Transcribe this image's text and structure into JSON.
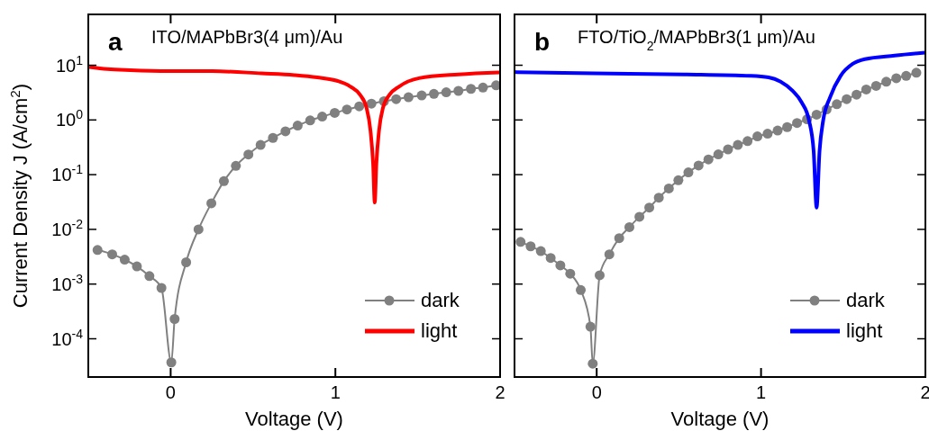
{
  "chart_data": [
    {
      "type": "line",
      "title": "ITO/MAPbBr3(4 μm)/Au",
      "annotations": [
        "a"
      ],
      "xlabel": "Voltage (V)",
      "ylabel": "Current Density J (A/cm$^{2}$)",
      "log": "y",
      "xlim": [
        -0.5,
        2
      ],
      "ylim": [
        2e-05,
        85
      ],
      "xticks": [
        0,
        1,
        2
      ],
      "yticks": [
        {
          "value": 0.0001,
          "label": "10$^{-4}$"
        },
        {
          "value": 0.001,
          "label": "10$^{-3}$"
        },
        {
          "value": 0.01,
          "label": "10$^{-2}$"
        },
        {
          "value": 0.1,
          "label": "10$^{-1}$"
        },
        {
          "value": 1,
          "label": "10$^{0}$"
        },
        {
          "value": 10,
          "label": "10$^{1}$"
        }
      ],
      "legend": "bottom right",
      "series": [
        {
          "name": "dark",
          "color": "#808080",
          "marker": "circle",
          "x": [
            -0.444,
            -0.355,
            -0.279,
            -0.205,
            -0.129,
            -0.056,
            0.004,
            0.024,
            0.094,
            0.169,
            0.247,
            0.323,
            0.396,
            0.472,
            0.546,
            0.621,
            0.697,
            0.771,
            0.847,
            0.92,
            0.996,
            1.07,
            1.145,
            1.219,
            1.295,
            1.369,
            1.444,
            1.524,
            1.598,
            1.673,
            1.747,
            1.823,
            1.896,
            1.976
          ],
          "values": [
            0.0042,
            0.0035,
            0.0028,
            0.0021,
            0.0014,
            0.00085,
            3.7e-05,
            0.00023,
            0.0025,
            0.01,
            0.03,
            0.076,
            0.145,
            0.234,
            0.35,
            0.47,
            0.62,
            0.79,
            0.98,
            1.15,
            1.35,
            1.55,
            1.77,
            1.99,
            2.2,
            2.4,
            2.6,
            2.8,
            3.0,
            3.2,
            3.4,
            3.7,
            3.9,
            4.3
          ]
        },
        {
          "name": "light",
          "color": "#ff0000",
          "marker": "none",
          "x": [
            -0.494,
            -0.384,
            -0.245,
            -0.006,
            0.253,
            0.552,
            0.751,
            0.89,
            1.01,
            1.09,
            1.149,
            1.189,
            1.213,
            1.229,
            1.239,
            1.249,
            1.265,
            1.289,
            1.329,
            1.388,
            1.508,
            1.747,
            2.0
          ],
          "values": [
            9.3,
            8.5,
            8.1,
            7.8,
            7.8,
            7.1,
            6.6,
            6.0,
            5.2,
            4.1,
            2.9,
            1.67,
            0.64,
            0.16,
            0.031,
            0.16,
            0.64,
            1.67,
            2.9,
            4.1,
            5.8,
            6.8,
            7.4
          ]
        }
      ]
    },
    {
      "type": "line",
      "title": "FTO/TiO$_{2}$/MAPbBr3(1 μm)/Au",
      "annotations": [
        "b"
      ],
      "xlabel": "Voltage (V)",
      "log": "y",
      "xlim": [
        -0.5,
        2
      ],
      "ylim": [
        2e-05,
        85
      ],
      "tick_labels": "x",
      "xticks": [
        0,
        1,
        2
      ],
      "yticks": [
        {
          "value": 0.0001,
          "label": null
        },
        {
          "value": 0.001,
          "label": null
        },
        {
          "value": 0.01,
          "label": null
        },
        {
          "value": 0.1,
          "label": null
        },
        {
          "value": 1,
          "label": null
        },
        {
          "value": 10,
          "label": null
        }
      ],
      "legend": "bottom right",
      "series": [
        {
          "name": "dark",
          "color": "#808080",
          "marker": "circle",
          "x": [
            -0.463,
            -0.402,
            -0.34,
            -0.28,
            -0.221,
            -0.161,
            -0.097,
            -0.038,
            -0.024,
            0.018,
            0.077,
            0.137,
            0.199,
            0.26,
            0.32,
            0.378,
            0.439,
            0.497,
            0.558,
            0.62,
            0.68,
            0.74,
            0.799,
            0.859,
            0.918,
            0.978,
            1.04,
            1.101,
            1.159,
            1.219,
            1.28,
            1.338,
            1.399,
            1.461,
            1.521,
            1.581,
            1.64,
            1.7,
            1.762,
            1.823,
            1.883,
            1.945
          ],
          "values": [
            0.0059,
            0.0049,
            0.004,
            0.003,
            0.0022,
            0.00155,
            0.00078,
            0.000166,
            3.5e-05,
            0.00145,
            0.0035,
            0.0069,
            0.011,
            0.017,
            0.025,
            0.038,
            0.056,
            0.079,
            0.11,
            0.147,
            0.19,
            0.235,
            0.29,
            0.35,
            0.41,
            0.5,
            0.56,
            0.64,
            0.74,
            0.88,
            1.03,
            1.25,
            1.56,
            1.94,
            2.4,
            2.9,
            3.6,
            4.2,
            5.0,
            5.8,
            6.4,
            7.3
          ]
        },
        {
          "name": "light",
          "color": "#0000ff",
          "marker": "none",
          "x": [
            -0.5,
            -0.015,
            0.534,
            0.936,
            1.046,
            1.119,
            1.192,
            1.247,
            1.292,
            1.32,
            1.338,
            1.356,
            1.378,
            1.42,
            1.484,
            1.558,
            1.631,
            1.813,
            2.0
          ],
          "values": [
            7.5,
            7.1,
            6.8,
            6.4,
            6.0,
            5.0,
            3.4,
            2.1,
            0.98,
            0.27,
            0.025,
            0.27,
            0.98,
            2.6,
            6.4,
            10.6,
            12.9,
            15,
            17
          ]
        }
      ]
    }
  ]
}
